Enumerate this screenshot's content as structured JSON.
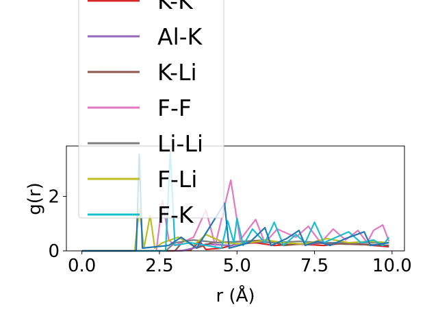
{
  "chart_data": {
    "type": "line",
    "xlabel": "r (Å)",
    "ylabel": "g(r)",
    "xlim": [
      -0.5,
      10.4
    ],
    "ylim": [
      0,
      3.85
    ],
    "xticks": [
      0.0,
      2.5,
      5.0,
      7.5,
      10.0
    ],
    "xtick_labels": [
      "0.0",
      "2.5",
      "5.0",
      "7.5",
      "10.0"
    ],
    "yticks": [
      0,
      2
    ],
    "ytick_labels": [
      "0",
      "2"
    ],
    "grid": false,
    "legend_placement": "upper-left, overlapping plot",
    "series": [
      {
        "name": "K-K",
        "color": "#d62728",
        "points": [
          [
            0,
            0
          ],
          [
            1.8,
            0
          ],
          [
            2.9,
            0
          ],
          [
            3.5,
            0.02
          ],
          [
            3.8,
            0.35
          ],
          [
            4.0,
            0.05
          ],
          [
            4.5,
            0.1
          ],
          [
            5.0,
            0.25
          ],
          [
            5.6,
            0.3
          ],
          [
            6.2,
            0.2
          ],
          [
            7.0,
            0.25
          ],
          [
            7.8,
            0.2
          ],
          [
            8.6,
            0.3
          ],
          [
            9.4,
            0.2
          ],
          [
            9.9,
            0.15
          ]
        ]
      },
      {
        "name": "Al-K",
        "color": "#9467bd",
        "points": [
          [
            0,
            0
          ],
          [
            3.2,
            0
          ],
          [
            3.6,
            0.1
          ],
          [
            4.0,
            0.25
          ],
          [
            4.8,
            0.2
          ],
          [
            5.5,
            0.35
          ],
          [
            6.3,
            0.3
          ],
          [
            7.2,
            0.25
          ],
          [
            8.0,
            0.3
          ],
          [
            8.8,
            0.25
          ],
          [
            9.9,
            0.2
          ]
        ]
      },
      {
        "name": "K-Li",
        "color": "#8c564b",
        "points": [
          [
            0,
            0
          ],
          [
            3.0,
            0
          ],
          [
            3.3,
            0.4
          ],
          [
            3.7,
            0.1
          ],
          [
            4.2,
            0.3
          ],
          [
            5.2,
            0.35
          ],
          [
            6.0,
            0.4
          ],
          [
            6.5,
            0.2
          ],
          [
            7.5,
            0.3
          ],
          [
            8.5,
            0.25
          ],
          [
            9.9,
            0.2
          ]
        ]
      },
      {
        "name": "F-F",
        "color": "#e377c2",
        "points": [
          [
            0,
            0
          ],
          [
            2.4,
            0
          ],
          [
            2.6,
            1.85
          ],
          [
            2.8,
            0.4
          ],
          [
            3.0,
            0.2
          ],
          [
            3.6,
            0.5
          ],
          [
            4.0,
            1.5
          ],
          [
            4.3,
            0.2
          ],
          [
            4.8,
            2.6
          ],
          [
            5.1,
            0.4
          ],
          [
            5.6,
            1.15
          ],
          [
            5.9,
            0.3
          ],
          [
            6.3,
            0.8
          ],
          [
            6.9,
            0.5
          ],
          [
            7.3,
            0.9
          ],
          [
            7.7,
            0.3
          ],
          [
            8.1,
            0.8
          ],
          [
            8.5,
            0.4
          ],
          [
            8.9,
            0.75
          ],
          [
            9.2,
            0.3
          ],
          [
            9.4,
            0.75
          ],
          [
            9.7,
            0.95
          ],
          [
            9.9,
            0.35
          ]
        ]
      },
      {
        "name": "Li-Li",
        "color": "#7f7f7f",
        "points": [
          [
            0,
            0
          ],
          [
            2.7,
            0
          ],
          [
            3.0,
            0.3
          ],
          [
            3.6,
            0.4
          ],
          [
            4.4,
            0.3
          ],
          [
            5.3,
            0.35
          ],
          [
            6.1,
            0.3
          ],
          [
            7.0,
            0.35
          ],
          [
            7.9,
            0.3
          ],
          [
            8.9,
            0.3
          ],
          [
            9.9,
            0.3
          ]
        ]
      },
      {
        "name": "F-Li",
        "color": "#bcbd22",
        "points": [
          [
            0,
            0
          ],
          [
            1.7,
            0
          ],
          [
            1.85,
            1.55
          ],
          [
            2.0,
            0.1
          ],
          [
            2.2,
            1.3
          ],
          [
            2.35,
            0.1
          ],
          [
            2.6,
            0.3
          ],
          [
            3.1,
            0.5
          ],
          [
            3.6,
            0.2
          ],
          [
            4.0,
            0.6
          ],
          [
            4.6,
            0.3
          ],
          [
            5.2,
            0.25
          ],
          [
            5.9,
            0.4
          ],
          [
            6.5,
            0.3
          ],
          [
            7.2,
            0.25
          ],
          [
            7.9,
            0.45
          ],
          [
            8.6,
            0.3
          ],
          [
            9.3,
            0.35
          ],
          [
            9.9,
            0.3
          ]
        ]
      },
      {
        "name": "F-K",
        "color": "#17becf",
        "points": [
          [
            0,
            0
          ],
          [
            2.7,
            0
          ],
          [
            2.85,
            3.65
          ],
          [
            3.0,
            0.2
          ],
          [
            3.5,
            0.3
          ],
          [
            4.0,
            0.2
          ],
          [
            4.5,
            0.1
          ],
          [
            4.7,
            1.1
          ],
          [
            4.9,
            0.3
          ],
          [
            5.0,
            1.2
          ],
          [
            5.2,
            0.2
          ],
          [
            5.5,
            0.8
          ],
          [
            5.9,
            0.3
          ],
          [
            6.2,
            1.05
          ],
          [
            6.5,
            0.2
          ],
          [
            6.9,
            0.6
          ],
          [
            7.2,
            0.3
          ],
          [
            7.5,
            1.05
          ],
          [
            7.8,
            0.3
          ],
          [
            8.2,
            0.5
          ],
          [
            8.6,
            0.7
          ],
          [
            9.0,
            0.3
          ],
          [
            9.4,
            0.4
          ],
          [
            9.7,
            0.2
          ],
          [
            9.9,
            0.5
          ]
        ]
      },
      {
        "name": "",
        "color": "#1f77b4",
        "points": [
          [
            0,
            0
          ],
          [
            1.75,
            0
          ],
          [
            1.85,
            3.55
          ],
          [
            1.95,
            0.1
          ],
          [
            2.8,
            0.2
          ],
          [
            3.2,
            0.5
          ],
          [
            3.7,
            0.1
          ],
          [
            4.6,
            1.75
          ],
          [
            4.75,
            0.1
          ],
          [
            5.4,
            0.3
          ],
          [
            5.9,
            0.85
          ],
          [
            6.1,
            0.2
          ],
          [
            6.6,
            0.45
          ],
          [
            7.0,
            0.75
          ],
          [
            7.2,
            0.2
          ],
          [
            7.6,
            0.35
          ],
          [
            8.0,
            0.2
          ],
          [
            8.5,
            0.45
          ],
          [
            9.1,
            0.7
          ],
          [
            9.3,
            0.2
          ],
          [
            9.9,
            0.3
          ]
        ]
      }
    ]
  }
}
